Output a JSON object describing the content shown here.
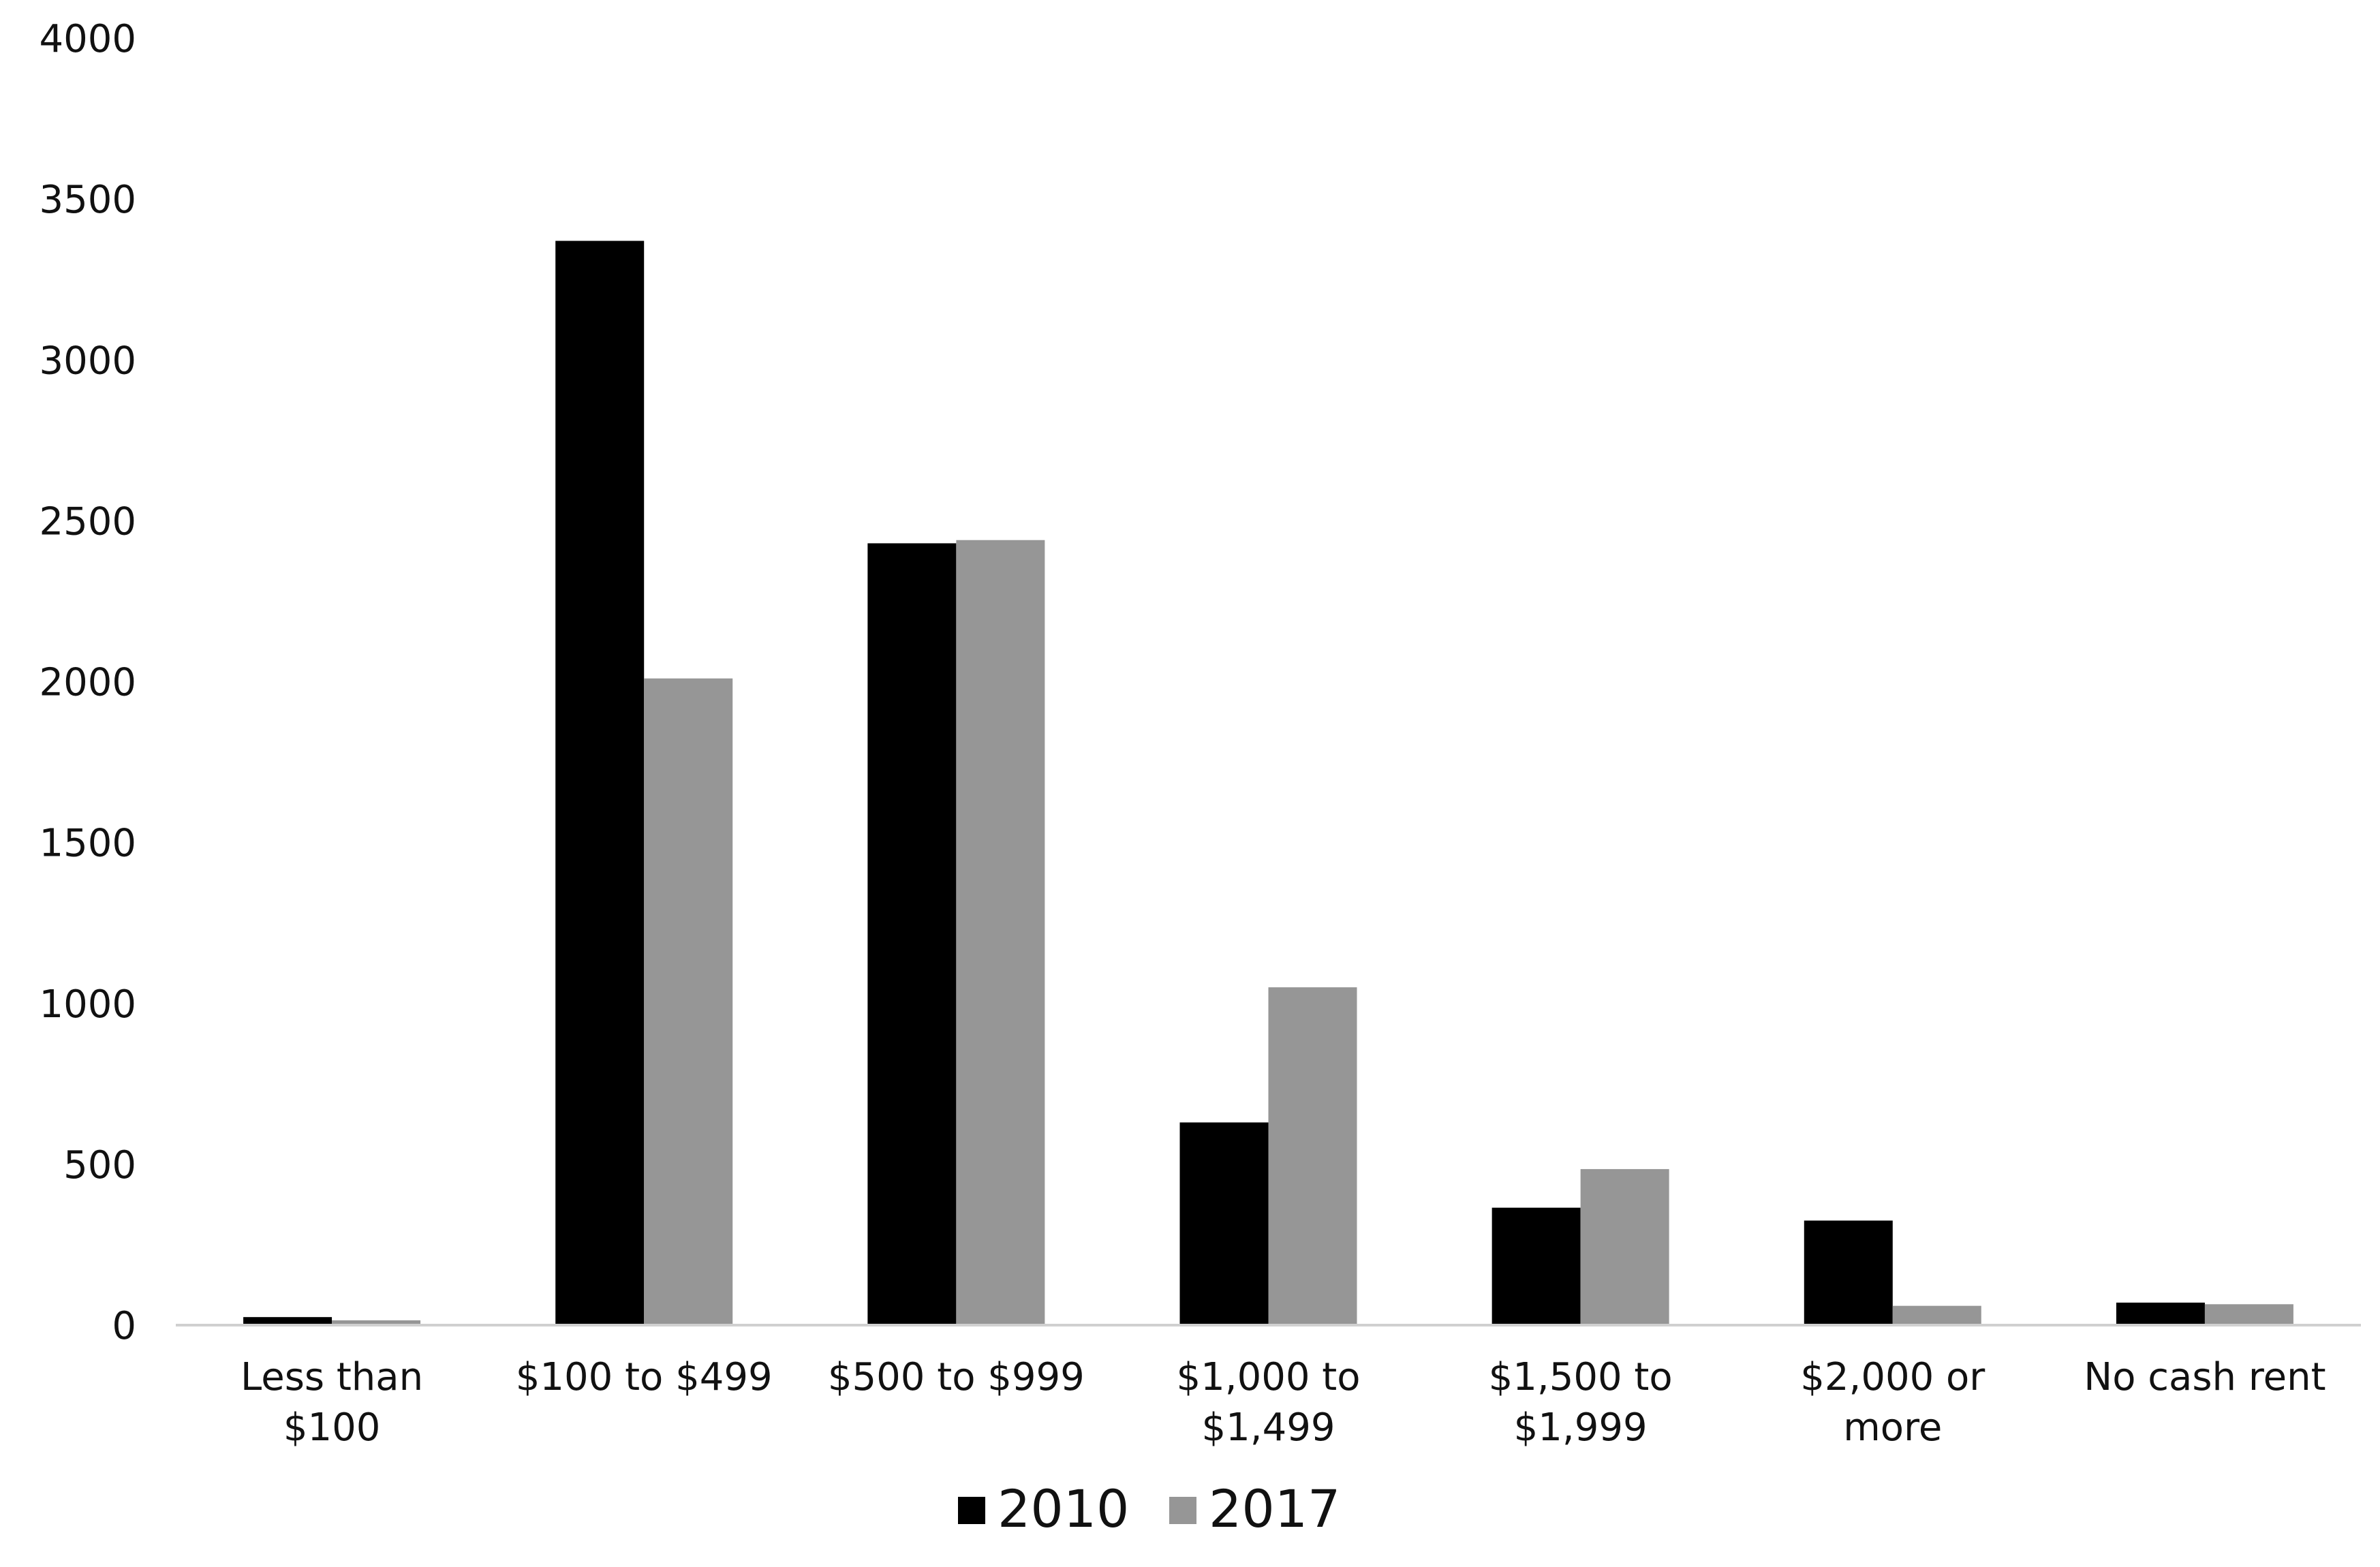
{
  "chart_data": {
    "type": "bar",
    "title": "",
    "xlabel": "",
    "ylabel": "",
    "categories": [
      [
        "Less than",
        "$100"
      ],
      [
        "$100 to $499"
      ],
      [
        "$500 to $999"
      ],
      [
        "$1,000 to",
        "$1,499"
      ],
      [
        "$1,500 to",
        "$1,999"
      ],
      [
        "$2,000 or",
        "more"
      ],
      [
        "No cash rent"
      ]
    ],
    "series": [
      {
        "name": "2010",
        "color": "#000000",
        "values": [
          25,
          3370,
          2430,
          630,
          365,
          325,
          70
        ]
      },
      {
        "name": "2017",
        "color": "#969696",
        "values": [
          15,
          2010,
          2440,
          1050,
          485,
          60,
          65
        ]
      }
    ],
    "ylim": [
      0,
      4000
    ],
    "yticks": [
      "0",
      "500",
      "1000",
      "1500",
      "2000",
      "2500",
      "3000",
      "3500",
      "4000"
    ],
    "grid": false,
    "legend_position": "bottom"
  }
}
